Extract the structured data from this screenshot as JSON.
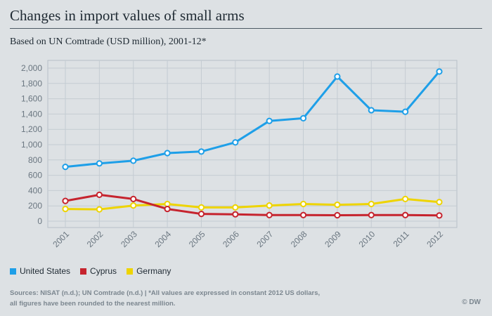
{
  "header": {
    "title": "Changes in import values of small arms",
    "subtitle": "Based on UN Comtrade (USD million), 2001-12*"
  },
  "chart_data": {
    "type": "line",
    "title": "Changes in import values of small arms",
    "subtitle": "Based on UN Comtrade (USD million), 2001-12*",
    "x": [
      "2001",
      "2002",
      "2003",
      "2004",
      "2005",
      "2006",
      "2007",
      "2008",
      "2009",
      "2010",
      "2011",
      "2012"
    ],
    "y_ticks": [
      "0",
      "200",
      "400",
      "600",
      "800",
      "1,000",
      "1,200",
      "1,400",
      "1,600",
      "1,800",
      "2,000"
    ],
    "ylim": [
      0,
      2000
    ],
    "grid": true,
    "legend_position": "bottom-left",
    "series": [
      {
        "name": "United States",
        "color": "#1e9fe8",
        "values": [
          710,
          755,
          790,
          890,
          910,
          1030,
          1310,
          1345,
          1890,
          1450,
          1430,
          1955
        ]
      },
      {
        "name": "Cyprus",
        "color": "#c6242e",
        "values": [
          265,
          345,
          290,
          160,
          95,
          90,
          80,
          80,
          78,
          80,
          80,
          75
        ]
      },
      {
        "name": "Germany",
        "color": "#eed400",
        "values": [
          160,
          155,
          205,
          225,
          180,
          180,
          205,
          225,
          215,
          225,
          290,
          250
        ]
      }
    ]
  },
  "footer": {
    "sources_line1": "Sources: NISAT (n.d.); UN Comtrade (n.d.) | *All values are expressed in constant 2012 US dollars,",
    "sources_line2": "all figures have been rounded to the nearest million.",
    "brand": "© DW"
  }
}
